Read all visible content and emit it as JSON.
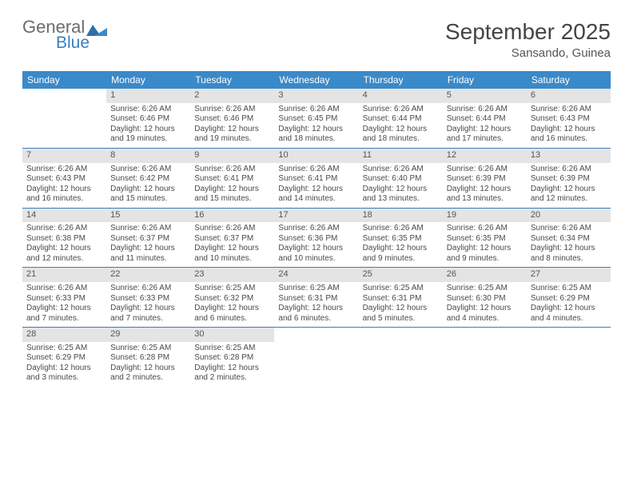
{
  "brand": {
    "general": "General",
    "blue": "Blue"
  },
  "title": "September 2025",
  "location": "Sansando, Guinea",
  "weekdays": [
    "Sunday",
    "Monday",
    "Tuesday",
    "Wednesday",
    "Thursday",
    "Friday",
    "Saturday"
  ],
  "colors": {
    "header_bg": "#3a89c9",
    "daynum_bg": "#e4e4e4",
    "rule": "#3a7fbf",
    "brand_gray": "#6b6b6b",
    "brand_blue": "#3a7fbf"
  },
  "labels": {
    "sunrise": "Sunrise:",
    "sunset": "Sunset:",
    "daylight": "Daylight:"
  },
  "weeks": [
    [
      {
        "n": "",
        "empty": true
      },
      {
        "n": "1",
        "sr": "6:26 AM",
        "ss": "6:46 PM",
        "dl": "12 hours and 19 minutes."
      },
      {
        "n": "2",
        "sr": "6:26 AM",
        "ss": "6:46 PM",
        "dl": "12 hours and 19 minutes."
      },
      {
        "n": "3",
        "sr": "6:26 AM",
        "ss": "6:45 PM",
        "dl": "12 hours and 18 minutes."
      },
      {
        "n": "4",
        "sr": "6:26 AM",
        "ss": "6:44 PM",
        "dl": "12 hours and 18 minutes."
      },
      {
        "n": "5",
        "sr": "6:26 AM",
        "ss": "6:44 PM",
        "dl": "12 hours and 17 minutes."
      },
      {
        "n": "6",
        "sr": "6:26 AM",
        "ss": "6:43 PM",
        "dl": "12 hours and 16 minutes."
      }
    ],
    [
      {
        "n": "7",
        "sr": "6:26 AM",
        "ss": "6:43 PM",
        "dl": "12 hours and 16 minutes."
      },
      {
        "n": "8",
        "sr": "6:26 AM",
        "ss": "6:42 PM",
        "dl": "12 hours and 15 minutes."
      },
      {
        "n": "9",
        "sr": "6:26 AM",
        "ss": "6:41 PM",
        "dl": "12 hours and 15 minutes."
      },
      {
        "n": "10",
        "sr": "6:26 AM",
        "ss": "6:41 PM",
        "dl": "12 hours and 14 minutes."
      },
      {
        "n": "11",
        "sr": "6:26 AM",
        "ss": "6:40 PM",
        "dl": "12 hours and 13 minutes."
      },
      {
        "n": "12",
        "sr": "6:26 AM",
        "ss": "6:39 PM",
        "dl": "12 hours and 13 minutes."
      },
      {
        "n": "13",
        "sr": "6:26 AM",
        "ss": "6:39 PM",
        "dl": "12 hours and 12 minutes."
      }
    ],
    [
      {
        "n": "14",
        "sr": "6:26 AM",
        "ss": "6:38 PM",
        "dl": "12 hours and 12 minutes."
      },
      {
        "n": "15",
        "sr": "6:26 AM",
        "ss": "6:37 PM",
        "dl": "12 hours and 11 minutes."
      },
      {
        "n": "16",
        "sr": "6:26 AM",
        "ss": "6:37 PM",
        "dl": "12 hours and 10 minutes."
      },
      {
        "n": "17",
        "sr": "6:26 AM",
        "ss": "6:36 PM",
        "dl": "12 hours and 10 minutes."
      },
      {
        "n": "18",
        "sr": "6:26 AM",
        "ss": "6:35 PM",
        "dl": "12 hours and 9 minutes."
      },
      {
        "n": "19",
        "sr": "6:26 AM",
        "ss": "6:35 PM",
        "dl": "12 hours and 9 minutes."
      },
      {
        "n": "20",
        "sr": "6:26 AM",
        "ss": "6:34 PM",
        "dl": "12 hours and 8 minutes."
      }
    ],
    [
      {
        "n": "21",
        "sr": "6:26 AM",
        "ss": "6:33 PM",
        "dl": "12 hours and 7 minutes."
      },
      {
        "n": "22",
        "sr": "6:26 AM",
        "ss": "6:33 PM",
        "dl": "12 hours and 7 minutes."
      },
      {
        "n": "23",
        "sr": "6:25 AM",
        "ss": "6:32 PM",
        "dl": "12 hours and 6 minutes."
      },
      {
        "n": "24",
        "sr": "6:25 AM",
        "ss": "6:31 PM",
        "dl": "12 hours and 6 minutes."
      },
      {
        "n": "25",
        "sr": "6:25 AM",
        "ss": "6:31 PM",
        "dl": "12 hours and 5 minutes."
      },
      {
        "n": "26",
        "sr": "6:25 AM",
        "ss": "6:30 PM",
        "dl": "12 hours and 4 minutes."
      },
      {
        "n": "27",
        "sr": "6:25 AM",
        "ss": "6:29 PM",
        "dl": "12 hours and 4 minutes."
      }
    ],
    [
      {
        "n": "28",
        "sr": "6:25 AM",
        "ss": "6:29 PM",
        "dl": "12 hours and 3 minutes."
      },
      {
        "n": "29",
        "sr": "6:25 AM",
        "ss": "6:28 PM",
        "dl": "12 hours and 2 minutes."
      },
      {
        "n": "30",
        "sr": "6:25 AM",
        "ss": "6:28 PM",
        "dl": "12 hours and 2 minutes."
      },
      {
        "n": "",
        "empty": true
      },
      {
        "n": "",
        "empty": true
      },
      {
        "n": "",
        "empty": true
      },
      {
        "n": "",
        "empty": true
      }
    ]
  ]
}
